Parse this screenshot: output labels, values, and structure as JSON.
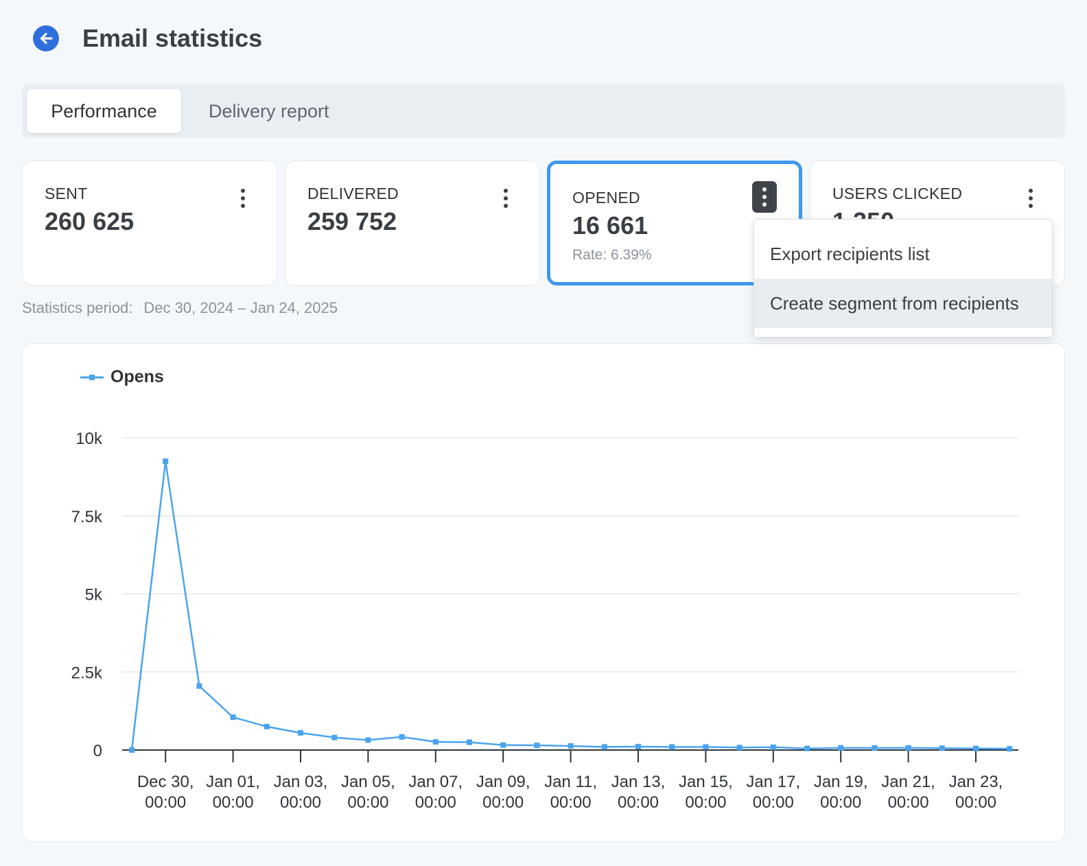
{
  "header": {
    "title": "Email statistics"
  },
  "tabs": [
    {
      "label": "Performance",
      "active": true
    },
    {
      "label": "Delivery report",
      "active": false
    }
  ],
  "cards": {
    "sent": {
      "label": "SENT",
      "value": "260 625"
    },
    "delivered": {
      "label": "DELIVERED",
      "value": "259 752"
    },
    "opened": {
      "label": "OPENED",
      "value": "16 661",
      "rate": "Rate: 6.39%"
    },
    "clicked": {
      "label": "USERS CLICKED",
      "value": "1 350"
    }
  },
  "menu": {
    "items": [
      {
        "label": "Export recipients list"
      },
      {
        "label": "Create segment from recipients"
      }
    ]
  },
  "period": {
    "label": "Statistics period:",
    "value": "Dec 30, 2024 – Jan 24, 2025"
  },
  "colors": {
    "accent": "#3f97ee",
    "back_button": "#2f6fdb",
    "series": "#4aa3ee"
  },
  "chart_data": {
    "type": "line",
    "series": [
      {
        "name": "Opens",
        "values": [
          0,
          9250,
          2050,
          1050,
          750,
          550,
          400,
          320,
          420,
          260,
          250,
          160,
          150,
          130,
          100,
          110,
          100,
          100,
          80,
          90,
          50,
          70,
          70,
          70,
          60,
          50,
          40
        ]
      }
    ],
    "x": [
      "Dec 29",
      "Dec 30",
      "Dec 31",
      "Jan 01",
      "Jan 02",
      "Jan 03",
      "Jan 04",
      "Jan 05",
      "Jan 06",
      "Jan 07",
      "Jan 08",
      "Jan 09",
      "Jan 10",
      "Jan 11",
      "Jan 12",
      "Jan 13",
      "Jan 14",
      "Jan 15",
      "Jan 16",
      "Jan 17",
      "Jan 18",
      "Jan 19",
      "Jan 20",
      "Jan 21",
      "Jan 22",
      "Jan 23",
      "Jan 24"
    ],
    "x_tick_labels": [
      [
        "Dec 30,",
        "00:00"
      ],
      [
        "Jan 01,",
        "00:00"
      ],
      [
        "Jan 03,",
        "00:00"
      ],
      [
        "Jan 05,",
        "00:00"
      ],
      [
        "Jan 07,",
        "00:00"
      ],
      [
        "Jan 09,",
        "00:00"
      ],
      [
        "Jan 11,",
        "00:00"
      ],
      [
        "Jan 13,",
        "00:00"
      ],
      [
        "Jan 15,",
        "00:00"
      ],
      [
        "Jan 17,",
        "00:00"
      ],
      [
        "Jan 19,",
        "00:00"
      ],
      [
        "Jan 21,",
        "00:00"
      ],
      [
        "Jan 23,",
        "00:00"
      ]
    ],
    "y_ticks": [
      0,
      2500,
      5000,
      7500,
      10000
    ],
    "y_tick_labels": [
      "0",
      "2.5k",
      "5k",
      "7.5k",
      "10k"
    ],
    "ylim": [
      0,
      10000
    ],
    "grid": true,
    "legend": "top-left"
  }
}
